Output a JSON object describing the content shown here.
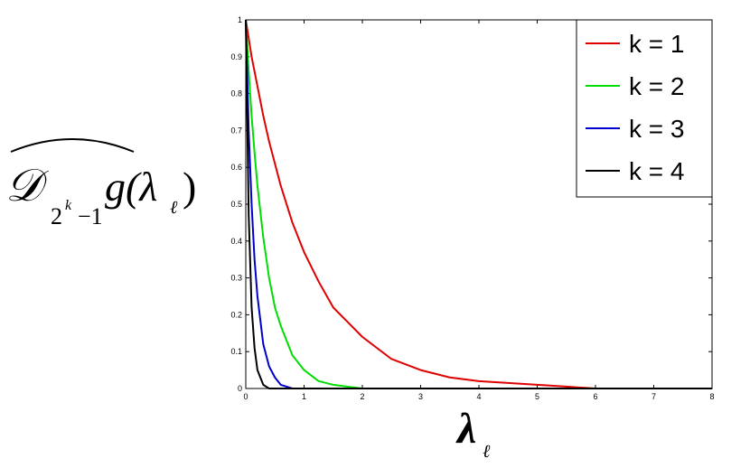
{
  "chart_data": {
    "type": "line",
    "y_label_parts": {
      "main": "𝒟",
      "sub": "2",
      "sup": "k",
      "sub_tail": "−1",
      "body": "g(λ",
      "body_sub": "ℓ",
      "close": ")"
    },
    "x_label_parts": {
      "main": "λ",
      "sub": "ℓ"
    },
    "x": [
      0,
      0.05,
      0.1,
      0.15,
      0.2,
      0.3,
      0.4,
      0.5,
      0.6,
      0.8,
      1,
      1.25,
      1.5,
      2,
      2.5,
      3,
      3.5,
      4,
      5,
      6,
      7,
      8
    ],
    "series": [
      {
        "name": "k = 1",
        "color": "#e00000",
        "values": [
          1,
          0.95,
          0.9,
          0.86,
          0.82,
          0.74,
          0.67,
          0.61,
          0.55,
          0.45,
          0.37,
          0.29,
          0.22,
          0.14,
          0.08,
          0.05,
          0.03,
          0.02,
          0.01,
          0,
          0,
          0
        ]
      },
      {
        "name": "k = 2",
        "color": "#00dd00",
        "values": [
          1,
          0.86,
          0.74,
          0.64,
          0.55,
          0.41,
          0.3,
          0.22,
          0.17,
          0.09,
          0.05,
          0.02,
          0.01,
          0,
          0,
          0,
          0,
          0,
          0,
          0,
          0,
          0
        ]
      },
      {
        "name": "k = 3",
        "color": "#0000cc",
        "values": [
          1,
          0.7,
          0.5,
          0.35,
          0.25,
          0.12,
          0.06,
          0.03,
          0.01,
          0,
          0,
          0,
          0,
          0,
          0,
          0,
          0,
          0,
          0,
          0,
          0,
          0
        ]
      },
      {
        "name": "k = 4",
        "color": "#000000",
        "values": [
          1,
          0.47,
          0.22,
          0.11,
          0.05,
          0.01,
          0,
          0,
          0,
          0,
          0,
          0,
          0,
          0,
          0,
          0,
          0,
          0,
          0,
          0,
          0,
          0
        ]
      }
    ],
    "xlim": [
      0,
      8
    ],
    "xticks": [
      0,
      1,
      2,
      3,
      4,
      5,
      6,
      7,
      8
    ],
    "ylim": [
      0,
      1
    ],
    "yticks": [
      0,
      0.1,
      0.2,
      0.3,
      0.4,
      0.5,
      0.6,
      0.7,
      0.8,
      0.9,
      1
    ],
    "grid": false,
    "legend": "upper right"
  }
}
